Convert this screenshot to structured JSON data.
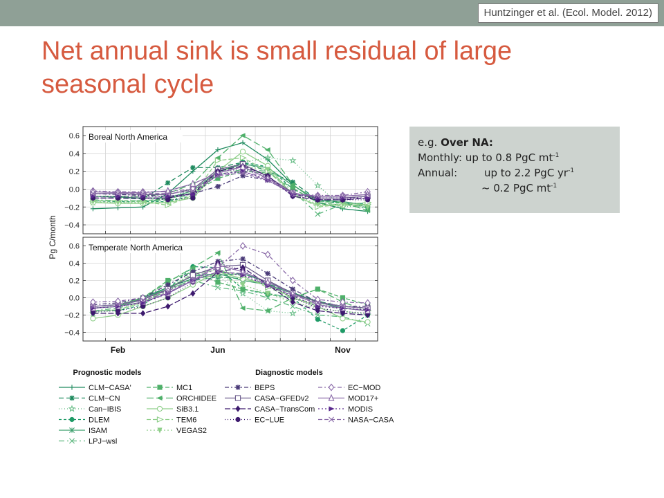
{
  "slide": {
    "citation": "Huntzinger et al. (Ecol. Model. 2012)",
    "title": "Net annual sink is small residual of large seasonal cycle"
  },
  "note": {
    "prefix": "e.g. ",
    "heading": "Over NA:",
    "monthly_label": "Monthly:",
    "monthly_value": "up to 0.8 PgC mt",
    "monthly_exp": "-1",
    "annual_label": "Annual:",
    "annual_value": "up to 2.2 PgC yr",
    "annual_exp": "-1",
    "approx_value": "~ 0.2 PgC mt",
    "approx_exp": "-1"
  },
  "colors": {
    "title": "#d65a3f",
    "band": "#8fa096",
    "note_bg": "#cdd3cf",
    "green_dark": "#1e8a5e",
    "green_mid": "#4fb06a",
    "green_light": "#8fcf8a",
    "purple_dark": "#3d1a6e",
    "purple_light": "#8a6aa8"
  },
  "chart_data": {
    "type": "line",
    "ylabel": "Pg C/month",
    "x_ticks": [
      "Feb",
      "Jun",
      "Nov"
    ],
    "x": [
      1,
      2,
      3,
      4,
      5,
      6,
      7,
      8,
      9,
      10,
      11,
      12
    ],
    "ylim": [
      -0.5,
      0.7
    ],
    "y_ticks": [
      "0.6",
      "0.4",
      "0.2",
      "0.0",
      "−0.2",
      "−0.4"
    ],
    "grid": true,
    "panels": [
      {
        "title": "Boreal North America",
        "series": [
          {
            "name": "CLM−CASA'",
            "color": "#1e8a5e",
            "dash": "",
            "marker": "plus",
            "values": [
              -0.22,
              -0.21,
              -0.2,
              -0.05,
              0.2,
              0.44,
              0.52,
              0.33,
              0.05,
              -0.15,
              -0.22,
              -0.25
            ]
          },
          {
            "name": "CLM−CN",
            "color": "#1e8a5e",
            "dash": "7,4",
            "marker": "asterisk",
            "values": [
              -0.1,
              -0.1,
              -0.11,
              0.07,
              0.24,
              0.24,
              0.3,
              0.2,
              0.08,
              -0.12,
              -0.15,
              -0.21
            ]
          },
          {
            "name": "Can−IBIS",
            "color": "#5db87e",
            "dash": "1,3",
            "marker": "star",
            "values": [
              -0.15,
              -0.15,
              -0.14,
              -0.1,
              0.0,
              0.2,
              0.3,
              0.35,
              0.32,
              0.04,
              -0.2,
              -0.18
            ]
          },
          {
            "name": "DLEM",
            "color": "#1e9a66",
            "dash": "4,3",
            "marker": "circle",
            "values": [
              -0.13,
              -0.14,
              -0.14,
              -0.14,
              -0.07,
              0.18,
              0.3,
              0.25,
              0.0,
              -0.13,
              -0.16,
              -0.16
            ]
          },
          {
            "name": "ISAM",
            "color": "#3ea06e",
            "dash": "",
            "marker": "cross",
            "values": [
              -0.08,
              -0.09,
              -0.1,
              -0.1,
              -0.02,
              0.2,
              0.28,
              0.24,
              0.04,
              -0.12,
              -0.14,
              -0.18
            ]
          },
          {
            "name": "LPJ−wsl",
            "color": "#5db87e",
            "dash": "8,4,2,4",
            "marker": "x",
            "values": [
              -0.12,
              -0.13,
              -0.13,
              -0.13,
              -0.05,
              0.16,
              0.22,
              0.2,
              -0.02,
              -0.28,
              -0.17,
              -0.22
            ]
          },
          {
            "name": "MC1",
            "color": "#4fb06a",
            "dash": "6,3",
            "marker": "square",
            "values": [
              -0.13,
              -0.13,
              -0.13,
              -0.11,
              -0.04,
              0.12,
              0.2,
              0.18,
              0.01,
              -0.15,
              -0.18,
              -0.18
            ]
          },
          {
            "name": "ORCHIDEE",
            "color": "#4fb06a",
            "dash": "10,4",
            "marker": "triangle-left",
            "values": [
              -0.08,
              -0.08,
              -0.08,
              -0.05,
              0.06,
              0.35,
              0.6,
              0.44,
              0.05,
              -0.14,
              -0.15,
              -0.24
            ]
          },
          {
            "name": "SiB3.1",
            "color": "#8fcf8a",
            "dash": "",
            "marker": "circle-open",
            "values": [
              -0.15,
              -0.16,
              -0.16,
              -0.15,
              -0.1,
              0.2,
              0.42,
              0.26,
              -0.07,
              -0.18,
              -0.18,
              -0.17
            ]
          },
          {
            "name": "TEM6",
            "color": "#8fcf8a",
            "dash": "6,3",
            "marker": "triangle-right-open",
            "values": [
              -0.13,
              -0.13,
              -0.14,
              -0.18,
              -0.07,
              0.32,
              0.35,
              0.2,
              -0.05,
              -0.2,
              -0.17,
              -0.15
            ]
          },
          {
            "name": "VEGAS2",
            "color": "#8fcf8a",
            "dash": "2,3",
            "marker": "triangle-down",
            "values": [
              -0.14,
              -0.15,
              -0.15,
              -0.15,
              -0.07,
              0.2,
              0.25,
              0.22,
              -0.05,
              -0.17,
              -0.17,
              -0.2
            ]
          },
          {
            "name": "BEPS",
            "color": "#4a3a78",
            "dash": "6,3,2,3",
            "marker": "asterisk",
            "values": [
              -0.05,
              -0.06,
              -0.07,
              -0.08,
              -0.05,
              0.03,
              0.15,
              0.1,
              -0.05,
              -0.12,
              -0.12,
              -0.1
            ]
          },
          {
            "name": "CASA−GFEDv2",
            "color": "#6a5a8a",
            "dash": "",
            "marker": "square-open",
            "values": [
              -0.05,
              -0.05,
              -0.06,
              -0.06,
              0.0,
              0.22,
              0.28,
              0.14,
              -0.04,
              -0.1,
              -0.1,
              -0.08
            ]
          },
          {
            "name": "CASA−TransCom",
            "color": "#3d1a6e",
            "dash": "8,3",
            "marker": "diamond",
            "values": [
              -0.1,
              -0.1,
              -0.1,
              -0.1,
              -0.05,
              0.2,
              0.26,
              0.15,
              -0.08,
              -0.12,
              -0.12,
              -0.1
            ]
          },
          {
            "name": "EC−LUE",
            "color": "#3d1a6e",
            "dash": "1,3",
            "marker": "circle",
            "values": [
              -0.1,
              -0.1,
              -0.1,
              -0.12,
              -0.1,
              0.2,
              0.22,
              0.14,
              -0.08,
              -0.12,
              -0.12,
              -0.12
            ]
          },
          {
            "name": "EC−MOD",
            "color": "#8a6aa8",
            "dash": "6,3,2,3",
            "marker": "diamond-open",
            "values": [
              -0.02,
              -0.03,
              -0.03,
              -0.03,
              0.0,
              0.17,
              0.2,
              0.12,
              -0.05,
              -0.07,
              -0.07,
              -0.03
            ]
          },
          {
            "name": "MOD17+",
            "color": "#8a6aa8",
            "dash": "",
            "marker": "triangle-up-open",
            "values": [
              -0.03,
              -0.04,
              -0.04,
              -0.02,
              0.06,
              0.18,
              0.25,
              0.12,
              -0.05,
              -0.08,
              -0.08,
              -0.06
            ]
          },
          {
            "name": "MODIS",
            "color": "#5a2a8e",
            "dash": "2,3",
            "marker": "triangle-right",
            "values": [
              -0.08,
              -0.08,
              -0.08,
              -0.08,
              -0.06,
              0.16,
              0.2,
              0.1,
              -0.06,
              -0.1,
              -0.1,
              -0.1
            ]
          },
          {
            "name": "NASA−CASA",
            "color": "#8a6aa8",
            "dash": "6,3",
            "marker": "x",
            "values": [
              -0.05,
              -0.05,
              -0.05,
              -0.05,
              -0.02,
              0.15,
              0.18,
              0.1,
              -0.05,
              -0.08,
              -0.08,
              -0.06
            ]
          }
        ]
      },
      {
        "title": "Temperate North America",
        "series": [
          {
            "name": "CLM−CASA'",
            "color": "#1e8a5e",
            "dash": "",
            "marker": "plus",
            "values": [
              -0.12,
              -0.1,
              0.0,
              0.12,
              0.22,
              0.26,
              0.28,
              0.18,
              0.06,
              -0.05,
              -0.12,
              -0.15
            ]
          },
          {
            "name": "CLM−CN",
            "color": "#1e8a5e",
            "dash": "7,4",
            "marker": "asterisk",
            "values": [
              -0.1,
              -0.08,
              -0.02,
              0.1,
              0.2,
              0.24,
              0.22,
              0.16,
              0.06,
              -0.04,
              -0.1,
              -0.12
            ]
          },
          {
            "name": "Can−IBIS",
            "color": "#5db87e",
            "dash": "1,3",
            "marker": "star",
            "values": [
              -0.18,
              -0.14,
              -0.05,
              0.1,
              0.3,
              0.25,
              0.05,
              -0.15,
              -0.18,
              -0.05,
              -0.15,
              -0.2
            ]
          },
          {
            "name": "DLEM",
            "color": "#1e9a66",
            "dash": "4,3",
            "marker": "circle",
            "values": [
              -0.15,
              -0.15,
              -0.08,
              0.1,
              0.36,
              0.35,
              0.1,
              0.04,
              0.0,
              -0.25,
              -0.38,
              -0.2
            ]
          },
          {
            "name": "ISAM",
            "color": "#3ea06e",
            "dash": "",
            "marker": "cross",
            "values": [
              -0.12,
              -0.1,
              -0.02,
              0.12,
              0.25,
              0.28,
              0.2,
              0.15,
              0.05,
              -0.05,
              -0.1,
              -0.12
            ]
          },
          {
            "name": "LPJ−wsl",
            "color": "#5db87e",
            "dash": "8,4,2,4",
            "marker": "x",
            "values": [
              -0.15,
              -0.12,
              -0.04,
              0.1,
              0.2,
              0.12,
              0.08,
              0.0,
              -0.1,
              -0.2,
              -0.22,
              -0.3
            ]
          },
          {
            "name": "MC1",
            "color": "#4fb06a",
            "dash": "6,3",
            "marker": "square",
            "values": [
              -0.1,
              -0.08,
              0.0,
              0.2,
              0.3,
              0.18,
              0.1,
              0.05,
              0.0,
              0.1,
              0.0,
              -0.08
            ]
          },
          {
            "name": "ORCHIDEE",
            "color": "#4fb06a",
            "dash": "10,4",
            "marker": "triangle-left",
            "values": [
              -0.12,
              -0.1,
              0.0,
              0.18,
              0.35,
              0.52,
              -0.12,
              -0.15,
              0.0,
              0.1,
              -0.05,
              -0.15
            ]
          },
          {
            "name": "SiB3.1",
            "color": "#8fcf8a",
            "dash": "",
            "marker": "circle-open",
            "values": [
              -0.24,
              -0.2,
              -0.1,
              0.0,
              0.15,
              0.3,
              0.22,
              0.15,
              0.0,
              -0.1,
              -0.24,
              -0.28
            ]
          },
          {
            "name": "TEM6",
            "color": "#8fcf8a",
            "dash": "6,3",
            "marker": "triangle-right-open",
            "values": [
              -0.15,
              -0.14,
              -0.05,
              0.1,
              0.28,
              0.32,
              0.25,
              0.12,
              0.0,
              -0.08,
              -0.12,
              -0.15
            ]
          },
          {
            "name": "VEGAS2",
            "color": "#8fcf8a",
            "dash": "2,3",
            "marker": "triangle-down",
            "values": [
              -0.16,
              -0.14,
              -0.06,
              0.08,
              0.22,
              0.26,
              0.15,
              0.05,
              -0.05,
              -0.12,
              -0.16,
              -0.18
            ]
          },
          {
            "name": "BEPS",
            "color": "#4a3a78",
            "dash": "6,3,2,3",
            "marker": "asterisk",
            "values": [
              -0.08,
              -0.06,
              0.0,
              0.15,
              0.3,
              0.42,
              0.45,
              0.28,
              0.1,
              -0.05,
              -0.1,
              -0.1
            ]
          },
          {
            "name": "CASA−GFEDv2",
            "color": "#6a5a8a",
            "dash": "",
            "marker": "square-open",
            "values": [
              -0.1,
              -0.08,
              -0.02,
              0.1,
              0.26,
              0.36,
              0.38,
              0.2,
              0.05,
              -0.05,
              -0.1,
              -0.12
            ]
          },
          {
            "name": "CASA−TransCom",
            "color": "#3d1a6e",
            "dash": "8,3",
            "marker": "diamond",
            "values": [
              -0.18,
              -0.18,
              -0.18,
              -0.1,
              0.05,
              0.3,
              0.35,
              0.15,
              -0.05,
              -0.15,
              -0.18,
              -0.2
            ]
          },
          {
            "name": "EC−LUE",
            "color": "#3d1a6e",
            "dash": "1,3",
            "marker": "circle",
            "values": [
              -0.16,
              -0.15,
              -0.1,
              0.0,
              0.18,
              0.4,
              0.32,
              0.15,
              0.0,
              -0.12,
              -0.16,
              -0.18
            ]
          },
          {
            "name": "EC−MOD",
            "color": "#8a6aa8",
            "dash": "6,3,2,3",
            "marker": "diamond-open",
            "values": [
              -0.05,
              -0.04,
              0.0,
              0.08,
              0.2,
              0.35,
              0.6,
              0.5,
              0.2,
              -0.02,
              -0.05,
              -0.06
            ]
          },
          {
            "name": "MOD17+",
            "color": "#8a6aa8",
            "dash": "",
            "marker": "triangle-up-open",
            "values": [
              -0.12,
              -0.1,
              -0.05,
              0.05,
              0.2,
              0.38,
              0.3,
              0.18,
              0.05,
              -0.08,
              -0.12,
              -0.15
            ]
          },
          {
            "name": "MODIS",
            "color": "#5a2a8e",
            "dash": "2,3",
            "marker": "triangle-right",
            "values": [
              -0.12,
              -0.1,
              -0.06,
              0.05,
              0.2,
              0.3,
              0.26,
              0.14,
              0.02,
              -0.1,
              -0.12,
              -0.14
            ]
          },
          {
            "name": "NASA−CASA",
            "color": "#8a6aa8",
            "dash": "6,3",
            "marker": "x",
            "values": [
              -0.1,
              -0.08,
              -0.03,
              0.06,
              0.2,
              0.3,
              0.28,
              0.15,
              0.03,
              -0.06,
              -0.1,
              -0.12
            ]
          }
        ]
      }
    ],
    "legend": {
      "placement": "bottom",
      "groups": [
        {
          "title": "Prognostic models",
          "columns": [
            [
              "CLM−CASA'",
              "CLM−CN",
              "Can−IBIS",
              "DLEM",
              "ISAM",
              "LPJ−wsl"
            ],
            [
              "MC1",
              "ORCHIDEE",
              "SiB3.1",
              "TEM6",
              "VEGAS2"
            ]
          ]
        },
        {
          "title": "Diagnostic models",
          "columns": [
            [
              "BEPS",
              "CASA−GFEDv2",
              "CASA−TransCom",
              "EC−LUE"
            ],
            [
              "EC−MOD",
              "MOD17+",
              "MODIS",
              "NASA−CASA"
            ]
          ]
        }
      ]
    }
  }
}
